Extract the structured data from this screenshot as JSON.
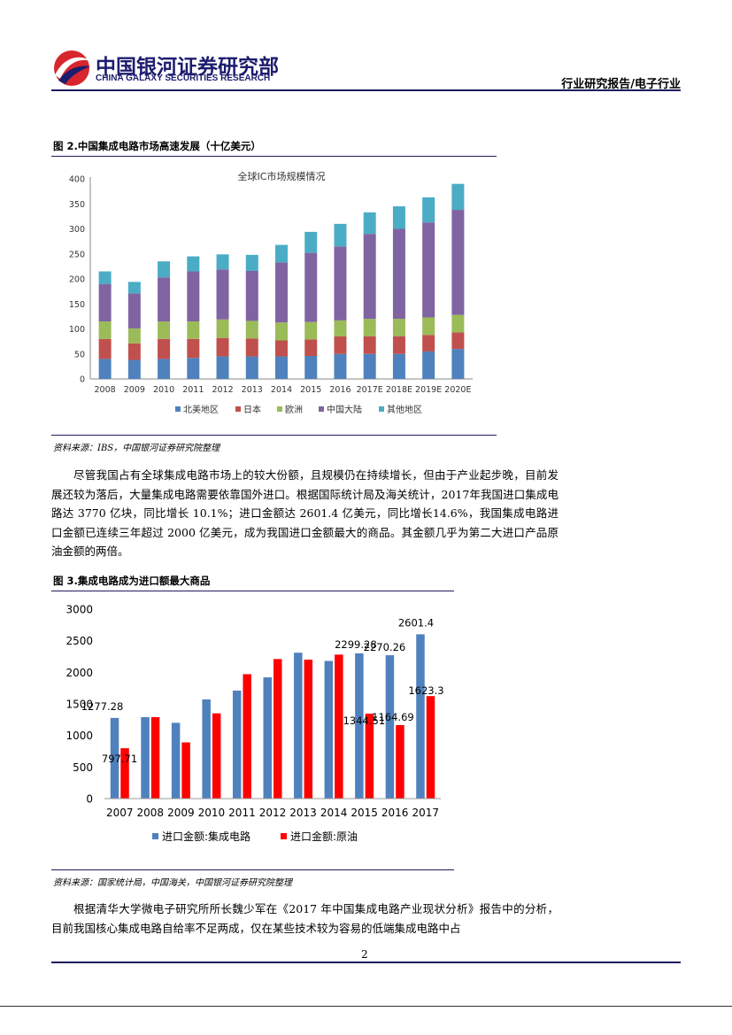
{
  "header": {
    "logo_cn": "中国银河证券研究部",
    "logo_en": "CHINA GALAXY SECURITIES RESEARCH",
    "right": "行业研究报告/电子行业"
  },
  "figure2": {
    "title": "图 2.中国集成电路市场高速发展（十亿美元）",
    "source": "资料来源：IBS，中国银河证券研究院整理",
    "colors": {
      "na": "#4f81bd",
      "jp": "#c0504d",
      "eu": "#9bbb59",
      "cn": "#8064a2",
      "other": "#4bacc6"
    },
    "chart_data": {
      "type": "bar",
      "stacked": true,
      "title": "全球IC市场规模情况",
      "categories": [
        "2008",
        "2009",
        "2010",
        "2011",
        "2012",
        "2013",
        "2014",
        "2015",
        "2016",
        "2017E",
        "2018E",
        "2019E",
        "2020E"
      ],
      "series": [
        {
          "key": "na",
          "name": "北美地区",
          "values": [
            40,
            38,
            40,
            42,
            45,
            45,
            45,
            46,
            50,
            50,
            50,
            55,
            60
          ]
        },
        {
          "key": "jp",
          "name": "日本",
          "values": [
            40,
            33,
            40,
            38,
            37,
            36,
            32,
            33,
            35,
            35,
            35,
            33,
            33
          ]
        },
        {
          "key": "eu",
          "name": "欧洲",
          "values": [
            35,
            30,
            35,
            35,
            37,
            35,
            36,
            35,
            32,
            35,
            35,
            35,
            35
          ]
        },
        {
          "key": "cn",
          "name": "中国大陆",
          "values": [
            75,
            70,
            88,
            100,
            100,
            100,
            120,
            138,
            148,
            170,
            180,
            190,
            210
          ]
        },
        {
          "key": "other",
          "name": "其他地区",
          "values": [
            25,
            23,
            32,
            30,
            30,
            32,
            35,
            42,
            45,
            43,
            45,
            50,
            52
          ]
        }
      ],
      "ylim": [
        0,
        400
      ],
      "yticks": [
        0,
        50,
        100,
        150,
        200,
        250,
        300,
        350,
        400
      ],
      "legend": "bottom"
    }
  },
  "paragraph1": "尽管我国占有全球集成电路市场上的较大份额，且规模仍在持续增长，但由于产业起步晚，目前发展还较为落后，大量集成电路需要依靠国外进口。根据国际统计局及海关统计，2017年我国进口集成电路达 3770 亿块，同比增长 10.1%；进口金额达 2601.4 亿美元，同比增长14.6%，我国集成电路进口金额已连续三年超过 2000 亿美元，成为我国进口金额最大的商品。其金额几乎为第二大进口产品原油金额的两倍。",
  "figure3": {
    "title": "图 3.集成电路成为进口额最大商品",
    "source": "资料来源：国家统计局，中国海关，中国银河证券研究院整理",
    "colors": {
      "ic": "#4f81bd",
      "oil": "#ff0000"
    },
    "chart_data": {
      "type": "bar",
      "categories": [
        "2007",
        "2008",
        "2009",
        "2010",
        "2011",
        "2012",
        "2013",
        "2014",
        "2015",
        "2016",
        "2017"
      ],
      "series": [
        {
          "key": "ic",
          "name": "进口金额:集成电路",
          "values": [
            1277.28,
            1290,
            1200,
            1570,
            1710,
            1920,
            2310,
            2180,
            2299.28,
            2270.26,
            2601.4
          ]
        },
        {
          "key": "oil",
          "name": "进口金额:原油",
          "values": [
            797.71,
            1290,
            890,
            1350,
            1970,
            2210,
            2200,
            2280,
            1344.51,
            1164.69,
            1623.3
          ]
        }
      ],
      "labels": [
        {
          "cat": "2007",
          "series": "ic",
          "text": "1277.28"
        },
        {
          "cat": "2007",
          "series": "oil",
          "text": "797.71"
        },
        {
          "cat": "2015",
          "series": "ic",
          "text": "2299.28"
        },
        {
          "cat": "2015",
          "series": "oil",
          "text": "1344.51"
        },
        {
          "cat": "2016",
          "series": "ic",
          "text": "2270.26"
        },
        {
          "cat": "2016",
          "series": "oil",
          "text": "1164.69"
        },
        {
          "cat": "2017",
          "series": "ic",
          "text": "2601.4"
        },
        {
          "cat": "2017",
          "series": "oil",
          "text": "1623.3"
        }
      ],
      "ylim": [
        0,
        3000
      ],
      "yticks": [
        0,
        500,
        1000,
        1500,
        2000,
        2500,
        3000
      ],
      "legend": "bottom"
    }
  },
  "paragraph2": "根据清华大学微电子研究所所长魏少军在《2017 年中国集成电路产业现状分析》报告中的分析，目前我国核心集成电路自给率不足两成，仅在某些技术较为容易的低端集成电路中占",
  "page_number": "2"
}
